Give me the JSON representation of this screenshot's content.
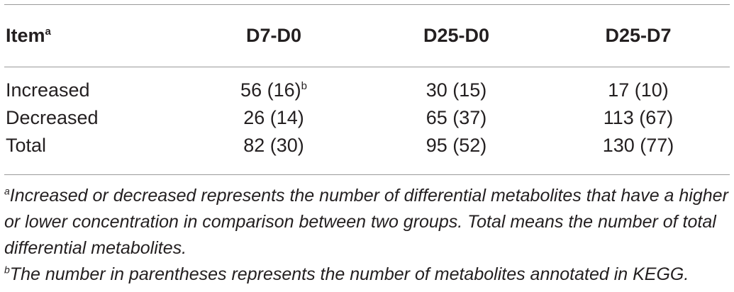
{
  "table": {
    "header": {
      "item_label": "Item",
      "item_sup": "a",
      "columns": [
        "D7-D0",
        "D25-D0",
        "D25-D7"
      ]
    },
    "rows": [
      {
        "label": "Increased",
        "values": [
          "56 (16)",
          "30 (15)",
          "17 (10)"
        ],
        "first_sup": "b"
      },
      {
        "label": "Decreased",
        "values": [
          "26 (14)",
          "65 (37)",
          "113 (67)"
        ]
      },
      {
        "label": "Total",
        "values": [
          "82 (30)",
          "95 (52)",
          "130 (77)"
        ]
      }
    ]
  },
  "footnotes": [
    {
      "mark": "a",
      "text": "Increased or decreased represents the number of differential metabolites that have a higher or lower concentration in comparison between two groups. Total means the number of total differential metabolites."
    },
    {
      "mark": "b",
      "text": "The number in parentheses represents the number of metabolites annotated in KEGG."
    }
  ]
}
